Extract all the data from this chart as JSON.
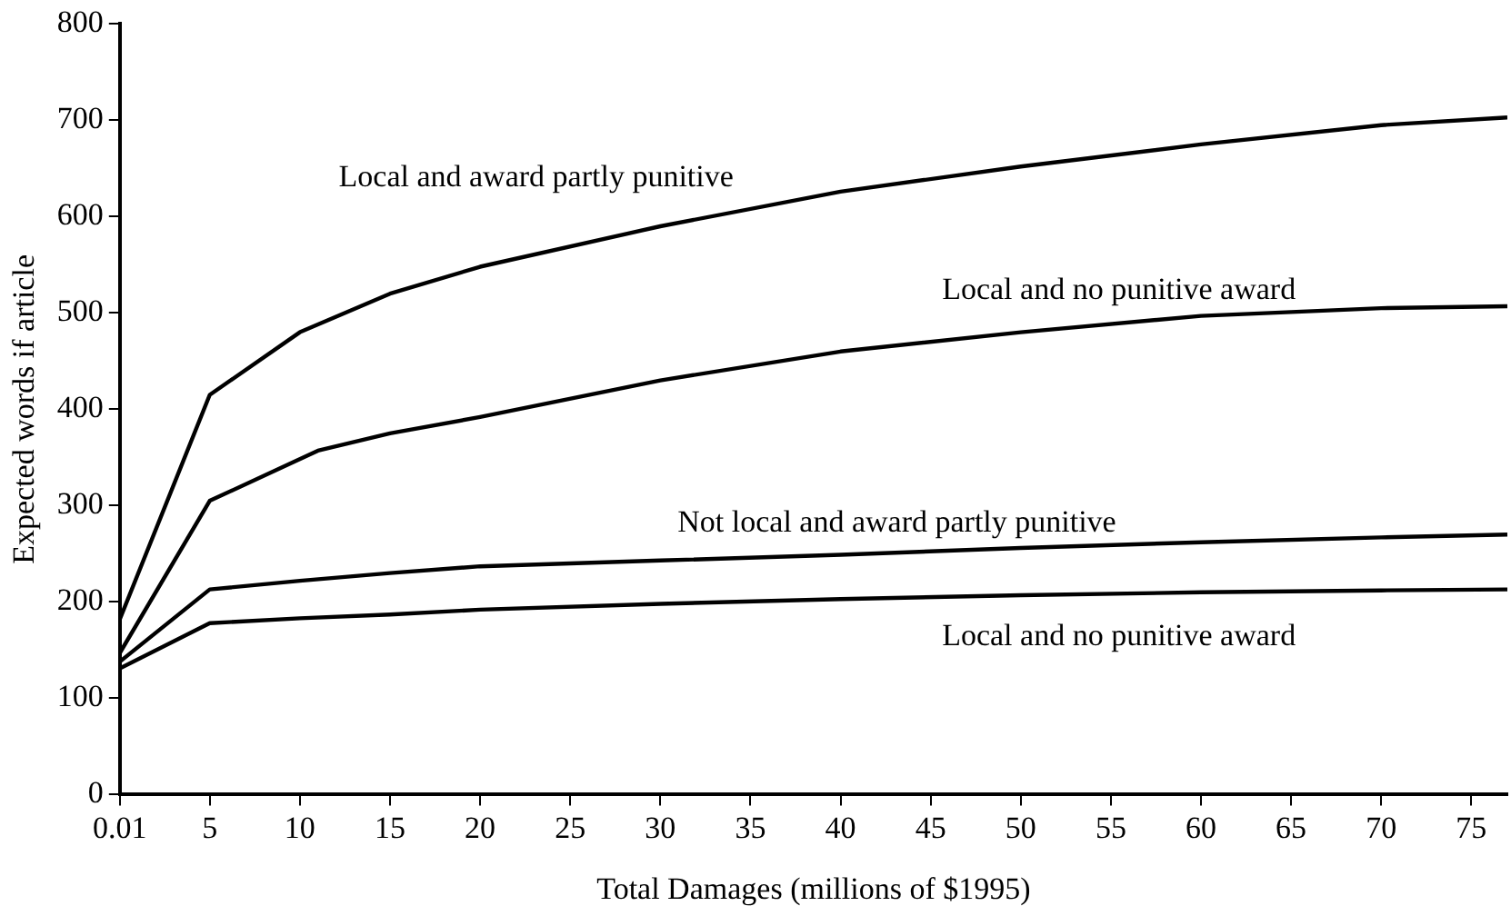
{
  "chart_data": {
    "type": "line",
    "xlabel": "Total Damages (millions of $1995)",
    "ylabel": "Expected words if article",
    "x": [
      0.01,
      5,
      10,
      15,
      20,
      30,
      40,
      50,
      60,
      70,
      77
    ],
    "series": [
      {
        "name": "Local and award partly punitive",
        "color": "#000000",
        "values": [
          182,
          415,
          480,
          520,
          548,
          590,
          626,
          652,
          675,
          695,
          703
        ]
      },
      {
        "name": "Local and no punitive award",
        "color": "#000000",
        "x": [
          0.01,
          5,
          11,
          15,
          20,
          30,
          40,
          50,
          60,
          70,
          77
        ],
        "values": [
          147,
          305,
          357,
          375,
          392,
          430,
          460,
          480,
          497,
          505,
          507
        ]
      },
      {
        "name": "Not local and award partly punitive",
        "color": "#000000",
        "values": [
          138,
          213,
          222,
          230,
          237,
          243,
          249,
          256,
          262,
          267,
          270
        ]
      },
      {
        "name": "Local and no punitive award",
        "color": "#000000",
        "values": [
          131,
          178,
          183,
          187,
          192,
          198,
          203,
          207,
          210,
          212,
          213
        ]
      }
    ],
    "xlim": [
      0.01,
      77
    ],
    "xticks": [
      0.01,
      5,
      10,
      15,
      20,
      25,
      30,
      35,
      40,
      45,
      50,
      55,
      60,
      65,
      70,
      75
    ],
    "ylim": [
      0,
      800
    ],
    "yticks": [
      0,
      100,
      200,
      300,
      400,
      500,
      600,
      700,
      800
    ],
    "grid": false,
    "legend": false,
    "marker": "none",
    "line_style": "solid"
  }
}
